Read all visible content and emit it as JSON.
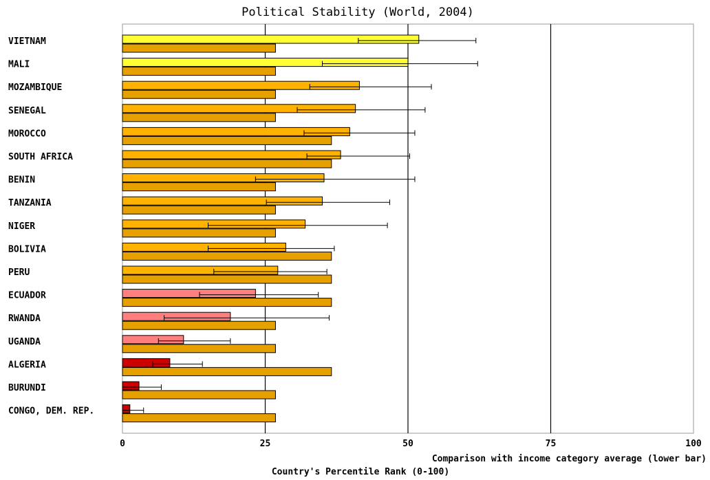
{
  "chart_data": {
    "type": "bar",
    "title": "Political Stability (World, 2004)",
    "xlabel": "Country's Percentile Rank (0-100)",
    "sublabel": "Comparison with income category average (lower bar)",
    "xlim": [
      0,
      100
    ],
    "x_ticks": [
      0,
      25,
      50,
      75,
      100
    ],
    "orientation": "horizontal",
    "grid": "vertical lines at 25, 50, 75",
    "categories": [
      "VIETNAM",
      "MALI",
      "MOZAMBIQUE",
      "SENEGAL",
      "MOROCCO",
      "SOUTH AFRICA",
      "BENIN",
      "TANZANIA",
      "NIGER",
      "BOLIVIA",
      "PERU",
      "ECUADOR",
      "RWANDA",
      "UGANDA",
      "ALGERIA",
      "BURUNDI",
      "CONGO, DEM. REP."
    ],
    "series": [
      {
        "values": [
          51.9,
          50.0,
          41.5,
          40.8,
          39.8,
          38.2,
          35.3,
          35.0,
          32.0,
          28.6,
          27.2,
          23.3,
          18.9,
          10.7,
          8.3,
          2.9,
          1.3
        ],
        "error_low": [
          41.3,
          35.0,
          32.8,
          30.6,
          31.8,
          32.3,
          23.3,
          25.2,
          15.0,
          15.0,
          16.0,
          13.5,
          7.3,
          6.3,
          5.3,
          0.0,
          0.0
        ],
        "error_high": [
          61.9,
          62.2,
          54.1,
          53.0,
          51.2,
          50.3,
          51.2,
          46.8,
          46.4,
          37.1,
          35.8,
          34.3,
          36.2,
          18.9,
          14.0,
          6.8,
          3.7
        ],
        "colors": [
          "#ffff33",
          "#ffff33",
          "#ffb300",
          "#ffb300",
          "#ffb300",
          "#ffb300",
          "#ffb300",
          "#ffb300",
          "#ffb300",
          "#ffb300",
          "#ffb300",
          "#ff7f7f",
          "#ff7f7f",
          "#ff7f7f",
          "#cc0000",
          "#cc0000",
          "#cc0000"
        ]
      },
      {
        "values": [
          26.8,
          26.8,
          26.8,
          26.8,
          36.6,
          36.6,
          26.8,
          26.8,
          26.8,
          36.6,
          36.6,
          36.6,
          26.8,
          26.8,
          36.6,
          26.8,
          26.8
        ],
        "color": "#e6a100"
      }
    ]
  }
}
